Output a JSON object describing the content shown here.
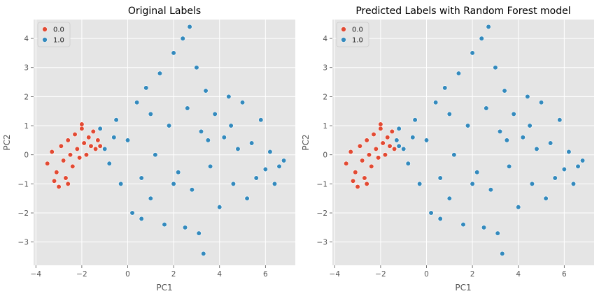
{
  "chart_data": [
    {
      "type": "scatter",
      "title": "Original Labels",
      "xlabel": "PC1",
      "ylabel": "PC2",
      "xlim": [
        -4.1,
        7.3
      ],
      "ylim": [
        -3.8,
        4.65
      ],
      "xticks": [
        -4,
        -2,
        0,
        2,
        4,
        6
      ],
      "xtick_labels": [
        "−4",
        "−2",
        "0",
        "2",
        "4",
        "6"
      ],
      "yticks": [
        -3,
        -2,
        -1,
        0,
        1,
        2,
        3,
        4
      ],
      "ytick_labels": [
        "−3",
        "−2",
        "−1",
        "0",
        "1",
        "2",
        "3",
        "4"
      ],
      "grid": true,
      "legend_position": "top-left",
      "series": [
        {
          "name": "0.0",
          "color": "#e24a33",
          "points": [
            [
              -3.5,
              -0.3
            ],
            [
              -3.3,
              0.1
            ],
            [
              -3.1,
              -0.6
            ],
            [
              -3.0,
              -1.1
            ],
            [
              -2.9,
              0.3
            ],
            [
              -2.8,
              -0.2
            ],
            [
              -2.7,
              -0.8
            ],
            [
              -2.6,
              0.5
            ],
            [
              -2.5,
              0.0
            ],
            [
              -2.4,
              -0.4
            ],
            [
              -2.3,
              0.7
            ],
            [
              -2.2,
              0.2
            ],
            [
              -2.1,
              -0.1
            ],
            [
              -2.0,
              0.9
            ],
            [
              -1.9,
              0.4
            ],
            [
              -1.8,
              0.0
            ],
            [
              -1.7,
              0.6
            ],
            [
              -1.6,
              0.3
            ],
            [
              -1.5,
              0.8
            ],
            [
              -1.4,
              0.2
            ],
            [
              -1.3,
              0.5
            ],
            [
              -1.2,
              0.3
            ],
            [
              -2.6,
              -1.0
            ],
            [
              -3.2,
              -0.9
            ],
            [
              -2.0,
              1.05
            ]
          ]
        },
        {
          "name": "1.0",
          "color": "#348abd",
          "points": [
            [
              -1.2,
              0.9
            ],
            [
              -1.0,
              0.2
            ],
            [
              -0.8,
              -0.3
            ],
            [
              -0.5,
              1.2
            ],
            [
              -0.3,
              -1.0
            ],
            [
              0.0,
              0.5
            ],
            [
              0.2,
              -2.0
            ],
            [
              0.4,
              1.8
            ],
            [
              0.6,
              -0.8
            ],
            [
              0.8,
              2.3
            ],
            [
              1.0,
              -1.5
            ],
            [
              1.2,
              0.0
            ],
            [
              1.4,
              2.8
            ],
            [
              1.6,
              -2.4
            ],
            [
              1.8,
              1.0
            ],
            [
              2.0,
              3.5
            ],
            [
              2.2,
              -0.6
            ],
            [
              2.4,
              4.0
            ],
            [
              2.5,
              -2.5
            ],
            [
              2.6,
              1.6
            ],
            [
              2.7,
              4.4
            ],
            [
              2.8,
              -1.2
            ],
            [
              3.0,
              3.0
            ],
            [
              3.1,
              -2.7
            ],
            [
              3.2,
              0.8
            ],
            [
              3.3,
              -3.4
            ],
            [
              3.4,
              2.2
            ],
            [
              3.6,
              -0.4
            ],
            [
              3.8,
              1.4
            ],
            [
              4.0,
              -1.8
            ],
            [
              4.2,
              0.6
            ],
            [
              4.4,
              2.0
            ],
            [
              4.6,
              -1.0
            ],
            [
              4.8,
              0.2
            ],
            [
              5.0,
              1.8
            ],
            [
              5.2,
              -1.5
            ],
            [
              5.4,
              0.4
            ],
            [
              5.6,
              -0.8
            ],
            [
              5.8,
              1.2
            ],
            [
              6.0,
              -0.5
            ],
            [
              6.2,
              0.1
            ],
            [
              6.4,
              -1.0
            ],
            [
              6.6,
              -0.4
            ],
            [
              6.8,
              -0.2
            ],
            [
              1.0,
              1.4
            ],
            [
              -0.6,
              0.6
            ],
            [
              0.6,
              -2.2
            ],
            [
              3.5,
              0.5
            ],
            [
              4.5,
              1.0
            ],
            [
              2.0,
              -1.0
            ]
          ]
        }
      ]
    },
    {
      "type": "scatter",
      "title": "Predicted Labels with Random Forest model",
      "xlabel": "PC1",
      "ylabel": "PC2",
      "xlim": [
        -4.1,
        7.3
      ],
      "ylim": [
        -3.8,
        4.65
      ],
      "xticks": [
        -4,
        -2,
        0,
        2,
        4,
        6
      ],
      "xtick_labels": [
        "−4",
        "−2",
        "0",
        "2",
        "4",
        "6"
      ],
      "yticks": [
        -3,
        -2,
        -1,
        0,
        1,
        2,
        3,
        4
      ],
      "ytick_labels": [
        "−3",
        "−2",
        "−1",
        "0",
        "1",
        "2",
        "3",
        "4"
      ],
      "grid": true,
      "legend_position": "top-left",
      "series": [
        {
          "name": "0.0",
          "color": "#e24a33",
          "points": [
            [
              -3.5,
              -0.3
            ],
            [
              -3.3,
              0.1
            ],
            [
              -3.1,
              -0.6
            ],
            [
              -3.0,
              -1.1
            ],
            [
              -2.9,
              0.3
            ],
            [
              -2.8,
              -0.2
            ],
            [
              -2.7,
              -0.8
            ],
            [
              -2.6,
              0.5
            ],
            [
              -2.5,
              0.0
            ],
            [
              -2.4,
              -0.4
            ],
            [
              -2.3,
              0.7
            ],
            [
              -2.2,
              0.2
            ],
            [
              -2.1,
              -0.1
            ],
            [
              -2.0,
              0.9
            ],
            [
              -1.9,
              0.4
            ],
            [
              -1.8,
              0.0
            ],
            [
              -1.7,
              0.6
            ],
            [
              -1.6,
              0.3
            ],
            [
              -1.5,
              0.8
            ],
            [
              -1.4,
              0.2
            ],
            [
              -2.6,
              -1.0
            ],
            [
              -3.2,
              -0.9
            ],
            [
              -2.0,
              1.05
            ]
          ]
        },
        {
          "name": "1.0",
          "color": "#348abd",
          "points": [
            [
              -1.3,
              0.5
            ],
            [
              -1.2,
              0.3
            ],
            [
              -1.2,
              0.9
            ],
            [
              -1.0,
              0.2
            ],
            [
              -0.8,
              -0.3
            ],
            [
              -0.5,
              1.2
            ],
            [
              -0.3,
              -1.0
            ],
            [
              0.0,
              0.5
            ],
            [
              0.2,
              -2.0
            ],
            [
              0.4,
              1.8
            ],
            [
              0.6,
              -0.8
            ],
            [
              0.8,
              2.3
            ],
            [
              1.0,
              -1.5
            ],
            [
              1.2,
              0.0
            ],
            [
              1.4,
              2.8
            ],
            [
              1.6,
              -2.4
            ],
            [
              1.8,
              1.0
            ],
            [
              2.0,
              3.5
            ],
            [
              2.2,
              -0.6
            ],
            [
              2.4,
              4.0
            ],
            [
              2.5,
              -2.5
            ],
            [
              2.6,
              1.6
            ],
            [
              2.7,
              4.4
            ],
            [
              2.8,
              -1.2
            ],
            [
              3.0,
              3.0
            ],
            [
              3.1,
              -2.7
            ],
            [
              3.2,
              0.8
            ],
            [
              3.3,
              -3.4
            ],
            [
              3.4,
              2.2
            ],
            [
              3.6,
              -0.4
            ],
            [
              3.8,
              1.4
            ],
            [
              4.0,
              -1.8
            ],
            [
              4.2,
              0.6
            ],
            [
              4.4,
              2.0
            ],
            [
              4.6,
              -1.0
            ],
            [
              4.8,
              0.2
            ],
            [
              5.0,
              1.8
            ],
            [
              5.2,
              -1.5
            ],
            [
              5.4,
              0.4
            ],
            [
              5.6,
              -0.8
            ],
            [
              5.8,
              1.2
            ],
            [
              6.0,
              -0.5
            ],
            [
              6.2,
              0.1
            ],
            [
              6.4,
              -1.0
            ],
            [
              6.6,
              -0.4
            ],
            [
              6.8,
              -0.2
            ],
            [
              1.0,
              1.4
            ],
            [
              -0.6,
              0.6
            ],
            [
              0.6,
              -2.2
            ],
            [
              3.5,
              0.5
            ],
            [
              4.5,
              1.0
            ],
            [
              2.0,
              -1.0
            ]
          ]
        }
      ]
    }
  ]
}
